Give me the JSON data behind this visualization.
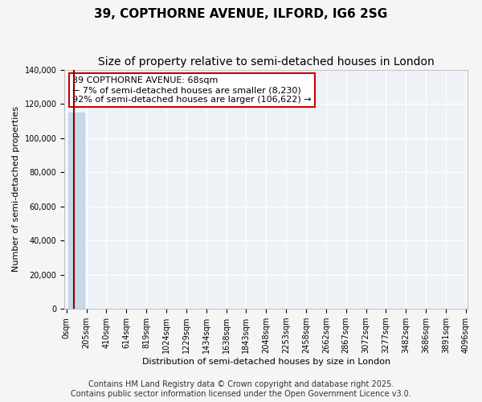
{
  "title": "39, COPTHORNE AVENUE, ILFORD, IG6 2SG",
  "subtitle": "Size of property relative to semi-detached houses in London",
  "xlabel": "Distribution of semi-detached houses by size in London",
  "ylabel": "Number of semi-detached properties",
  "property_size_sqm": 68,
  "pct_smaller": 7,
  "pct_larger": 92,
  "n_smaller": 8230,
  "n_larger": 106622,
  "annotation_text": "39 COPTHORNE AVENUE: 68sqm\n← 7% of semi-detached houses are smaller (8,230)\n92% of semi-detached houses are larger (106,622) →",
  "bar_color": "#c8d8e8",
  "bar_edge_color": "#b0c8e0",
  "line_color": "#8b0000",
  "annotation_box_edge_color": "#cc0000",
  "background_color": "#eef2f7",
  "grid_color": "#ffffff",
  "ylim": [
    0,
    140000
  ],
  "yticks": [
    0,
    20000,
    40000,
    60000,
    80000,
    100000,
    120000,
    140000
  ],
  "bin_labels": [
    "0sqm",
    "205sqm",
    "410sqm",
    "614sqm",
    "819sqm",
    "1024sqm",
    "1229sqm",
    "1434sqm",
    "1638sqm",
    "1843sqm",
    "2048sqm",
    "2253sqm",
    "2458sqm",
    "2662sqm",
    "2867sqm",
    "3072sqm",
    "3277sqm",
    "3482sqm",
    "3686sqm",
    "3891sqm",
    "4096sqm"
  ],
  "bar_heights": [
    114852,
    0,
    0,
    0,
    0,
    0,
    0,
    0,
    0,
    0,
    0,
    0,
    0,
    0,
    0,
    0,
    0,
    0,
    0,
    0
  ],
  "footnote": "Contains HM Land Registry data © Crown copyright and database right 2025.\nContains public sector information licensed under the Open Government Licence v3.0.",
  "title_fontsize": 11,
  "subtitle_fontsize": 10,
  "axis_label_fontsize": 8,
  "tick_fontsize": 7,
  "annotation_fontsize": 8,
  "footnote_fontsize": 7
}
